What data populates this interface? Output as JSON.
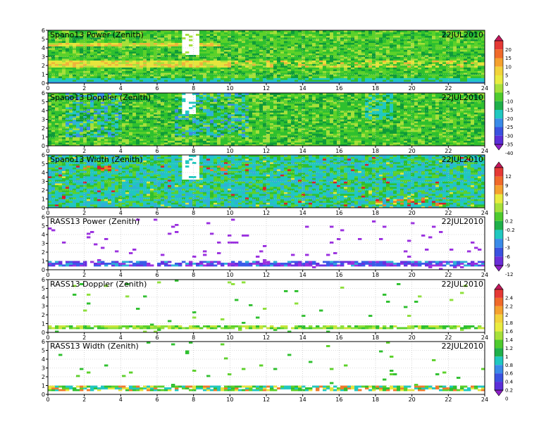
{
  "chart_data": [
    {
      "type": "heatmap",
      "title": "Spano13 Power (Zenith)",
      "date": "22JUL2010",
      "xlim": [
        0,
        24
      ],
      "ylim": [
        0,
        6
      ],
      "x_ticks": [
        0,
        2,
        4,
        6,
        8,
        10,
        12,
        14,
        16,
        18,
        20,
        22,
        24
      ],
      "y_ticks": [
        0,
        1,
        2,
        3,
        4,
        5,
        6
      ],
      "grid": true,
      "colorbar": "power",
      "pattern": "Mostly green background with yellow/orange layers near 1.7-2.6 km and 4.2-4.6 km early in the day; low-level cyan/blue band below 0.6 km; white data gap around 7.3-8.3 h above 3 km.",
      "colors": [
        "#0e9a3a",
        "#2fc02f",
        "#5cd12a",
        "#a6e03a",
        "#e6e53c",
        "#f0b43a"
      ]
    },
    {
      "type": "heatmap",
      "title": "Spano13 Doppler (Zenith)",
      "date": "22JUL2010",
      "xlim": [
        0,
        24
      ],
      "ylim": [
        0,
        6
      ],
      "x_ticks": [
        0,
        2,
        4,
        6,
        8,
        10,
        12,
        14,
        16,
        18,
        20,
        22,
        24
      ],
      "y_ticks": [
        0,
        1,
        2,
        3,
        4,
        5,
        6
      ],
      "grid": true,
      "colorbar": "doppler",
      "pattern": "Green background with dark-green streaks; cyan and blue patches aloft between 1-4 h and 7-11 h, and near 17.5-19 h.",
      "colors": [
        "#0e9a3a",
        "#2fc02f",
        "#5cd12a",
        "#a6e03a",
        "#20c8c0",
        "#3a8be8"
      ]
    },
    {
      "type": "heatmap",
      "title": "Spano13 Width (Zenith)",
      "date": "22JUL2010",
      "xlim": [
        0,
        24
      ],
      "ylim": [
        0,
        6
      ],
      "x_ticks": [
        0,
        2,
        4,
        6,
        8,
        10,
        12,
        14,
        16,
        18,
        20,
        22,
        24
      ],
      "y_ticks": [
        0,
        1,
        2,
        3,
        4,
        5,
        6
      ],
      "grid": true,
      "colorbar": "width",
      "pattern": "Cyan/teal background with green patches; red/orange speckles near 4.5 km around 2-4 h and 8-10 h, and low-level red streaks between 18 and 22 h.",
      "colors": [
        "#20c8c0",
        "#2fb0d8",
        "#2fc02f",
        "#e6e53c",
        "#f07a2a",
        "#d81e2a"
      ]
    },
    {
      "type": "heatmap",
      "title": "RASS13 Power (Zenith)",
      "date": "22JUL2010",
      "xlim": [
        0,
        24
      ],
      "ylim": [
        0,
        6
      ],
      "x_ticks": [
        0,
        2,
        4,
        6,
        8,
        10,
        12,
        14,
        16,
        18,
        20,
        22,
        24
      ],
      "y_ticks": [
        0,
        1,
        2,
        3,
        4,
        5,
        6
      ],
      "grid": true,
      "colorbar": "power",
      "pattern": "Dense purple/blue band between 0.4 and 1.0 km across the whole day; sparse purple points aloft.",
      "colors": [
        "#9b2fe0",
        "#6a2fe0",
        "#3a5be8",
        "#2fb0d8"
      ]
    },
    {
      "type": "heatmap",
      "title": "RASS13 Doppler (Zenith)",
      "date": "22JUL2010",
      "xlim": [
        0,
        24
      ],
      "ylim": [
        0,
        6
      ],
      "x_ticks": [
        0,
        2,
        4,
        6,
        8,
        10,
        12,
        14,
        16,
        18,
        20,
        22,
        24
      ],
      "y_ticks": [
        0,
        1,
        2,
        3,
        4,
        5,
        6
      ],
      "grid": true,
      "colorbar": "rass",
      "pattern": "Dense green band between 0.4 and 0.9 km across the whole day; sparse green points aloft.",
      "colors": [
        "#2fc02f",
        "#5cd12a",
        "#8ee03a",
        "#c8e63c"
      ]
    },
    {
      "type": "heatmap",
      "title": "RASS13 Width (Zenith)",
      "date": "22JUL2010",
      "xlim": [
        0,
        24
      ],
      "ylim": [
        0,
        6
      ],
      "x_ticks": [
        0,
        2,
        4,
        6,
        8,
        10,
        12,
        14,
        16,
        18,
        20,
        22,
        24
      ],
      "y_ticks": [
        0,
        1,
        2,
        3,
        4,
        5,
        6
      ],
      "grid": true,
      "colorbar": "rass",
      "pattern": "Dense cyan/green band between 0.4 and 1.0 km with scattered orange/red points; sparse green points aloft.",
      "colors": [
        "#20c8c0",
        "#2fc02f",
        "#5cd12a",
        "#e6e53c",
        "#f07a2a"
      ]
    }
  ],
  "colorbars": {
    "power": {
      "labels": [
        "20",
        "15",
        "10",
        "5",
        "0",
        "-5",
        "-10",
        "-15",
        "-20",
        "-25",
        "-30",
        "-35",
        "-40"
      ],
      "colors": [
        "#c2185b",
        "#e53935",
        "#f06a2a",
        "#f5a12e",
        "#f2d33a",
        "#e9ec3f",
        "#a6e03a",
        "#4ecb2e",
        "#1fb04a",
        "#20c8c0",
        "#3a8be8",
        "#3a52e0",
        "#5b2fd8",
        "#8e1fc8"
      ]
    },
    "width": {
      "labels": [
        "12",
        "9",
        "6",
        "3",
        "1",
        "0.2",
        "-0.2",
        "-1",
        "-3",
        "-6",
        "-9",
        "-12"
      ],
      "colors": [
        "#c2185b",
        "#e53935",
        "#f06a2a",
        "#f5a12e",
        "#e9ec3f",
        "#a6e03a",
        "#4ecb2e",
        "#1fb04a",
        "#20c8c0",
        "#3a8be8",
        "#3a52e0",
        "#6a2fd8",
        "#8e1fc8"
      ]
    },
    "rass": {
      "labels": [
        "2.4",
        "2.2",
        "2",
        "1.8",
        "1.6",
        "1.4",
        "1.2",
        "1",
        "0.8",
        "0.6",
        "0.4",
        "0.2",
        "0"
      ],
      "colors": [
        "#c2185b",
        "#e53935",
        "#f06a2a",
        "#f5a12e",
        "#f2d33a",
        "#e9ec3f",
        "#a6e03a",
        "#4ecb2e",
        "#1fb04a",
        "#20c8c0",
        "#3a8be8",
        "#3a52e0",
        "#5b2fd8",
        "#8e1fc8"
      ]
    }
  }
}
